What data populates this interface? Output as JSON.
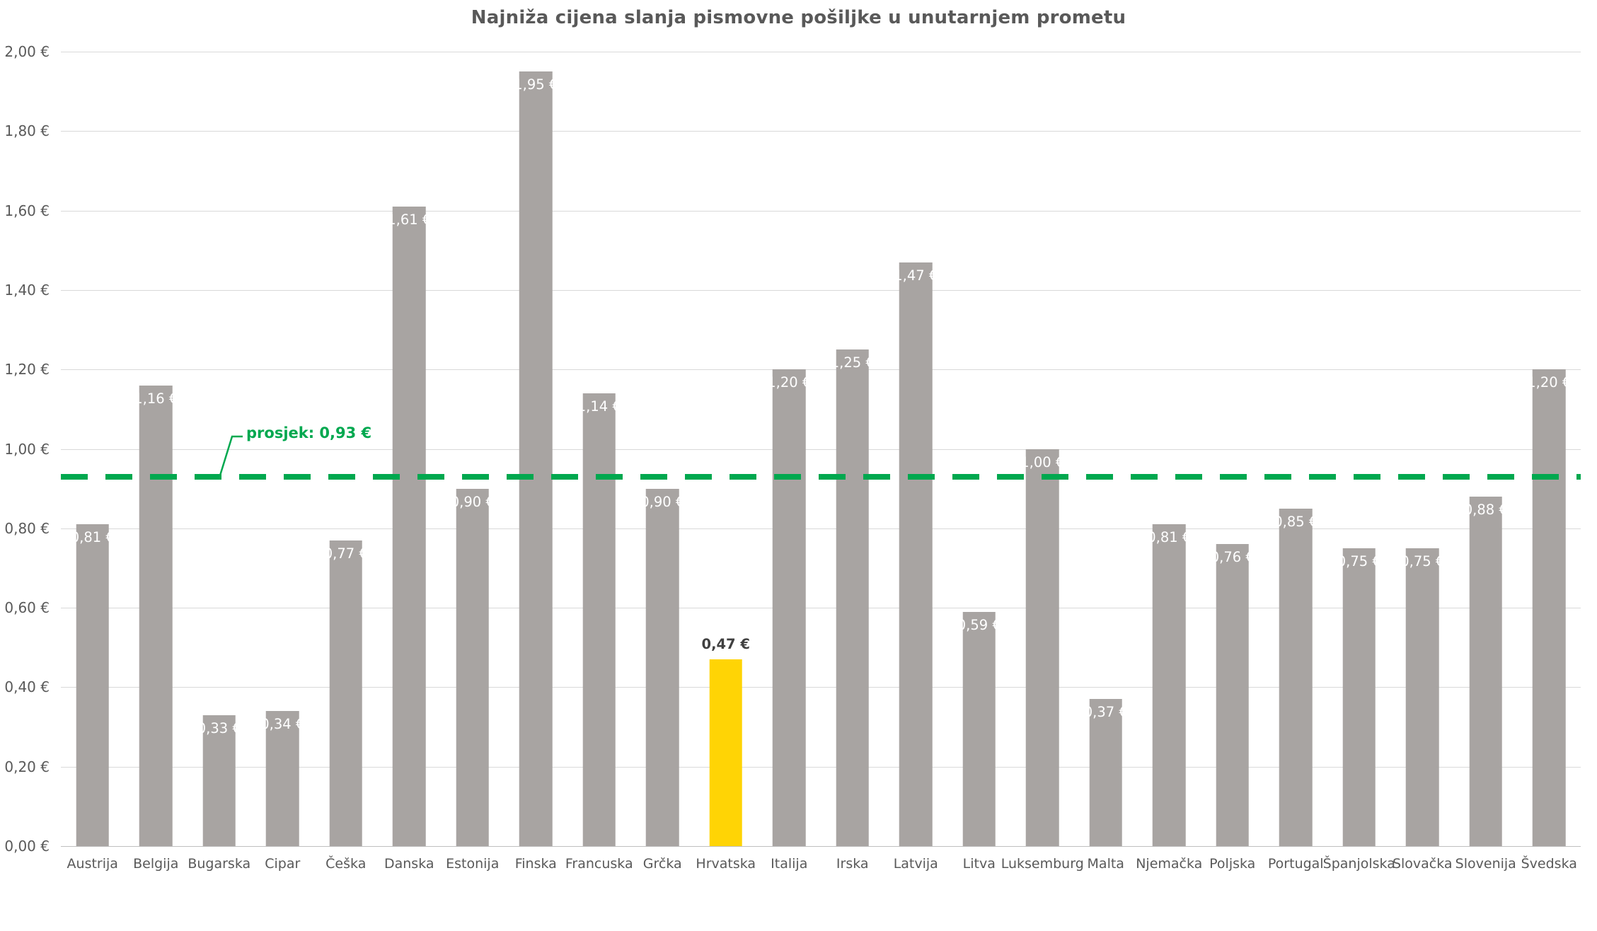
{
  "chart_data": {
    "type": "bar",
    "title": "Najniža cijena slanja pismovne pošiljke u unutarnjem prometu",
    "categories": [
      "Austrija",
      "Belgija",
      "Bugarska",
      "Cipar",
      "Češka",
      "Danska",
      "Estonija",
      "Finska",
      "Francuska",
      "Grčka",
      "Hrvatska",
      "Italija",
      "Irska",
      "Latvija",
      "Litva",
      "Luksemburg",
      "Malta",
      "Njemačka",
      "Poljska",
      "Portugal",
      "Španjolska",
      "Slovačka",
      "Slovenija",
      "Švedska"
    ],
    "values": [
      0.81,
      1.16,
      0.33,
      0.34,
      0.77,
      1.61,
      0.9,
      1.95,
      1.14,
      0.9,
      0.47,
      1.2,
      1.25,
      1.47,
      0.59,
      1.0,
      0.37,
      0.81,
      0.76,
      0.85,
      0.75,
      0.75,
      0.88,
      1.2
    ],
    "value_labels": [
      "0,81 €",
      "1,16 €",
      "0,33 €",
      "0,34 €",
      "0,77 €",
      "1,61 €",
      "0,90 €",
      "1,95 €",
      "1,14 €",
      "0,90 €",
      "0,47 €",
      "1,20 €",
      "1,25 €",
      "1,47 €",
      "0,59 €",
      "1,00 €",
      "0,37 €",
      "0,81 €",
      "0,76 €",
      "0,85 €",
      "0,75 €",
      "0,75 €",
      "0,88 €",
      "1,20 €"
    ],
    "highlight_category": "Hrvatska",
    "highlight_index": 10,
    "average_line": {
      "value": 0.93,
      "label": "prosjek: 0,93 €",
      "style": "dashed"
    },
    "y_axis": {
      "min": 0,
      "max": 2,
      "ticks": [
        {
          "value": 0.0,
          "label": "0,00 €"
        },
        {
          "value": 0.2,
          "label": "0,20 €"
        },
        {
          "value": 0.4,
          "label": "0,40 €"
        },
        {
          "value": 0.6,
          "label": "0,60 €"
        },
        {
          "value": 0.8,
          "label": "0,80 €"
        },
        {
          "value": 1.0,
          "label": "1,00 €"
        },
        {
          "value": 1.2,
          "label": "1,20 €"
        },
        {
          "value": 1.4,
          "label": "1,40 €"
        },
        {
          "value": 1.6,
          "label": "1,60 €"
        },
        {
          "value": 1.8,
          "label": "1,80 €"
        },
        {
          "value": 2.0,
          "label": "2,00 €"
        }
      ]
    },
    "xlabel": "",
    "ylabel": "",
    "legend": "none",
    "grid": "horizontal",
    "colors": {
      "bar": "#a8a4a2",
      "highlight": "#ffd405",
      "average": "#00a84f",
      "bar_label": "#ffffff",
      "highlight_label": "#404040",
      "axis_text": "#595959",
      "gridline": "#d9d9d9",
      "axis_line": "#bfbfbf",
      "title": "#595959"
    }
  }
}
